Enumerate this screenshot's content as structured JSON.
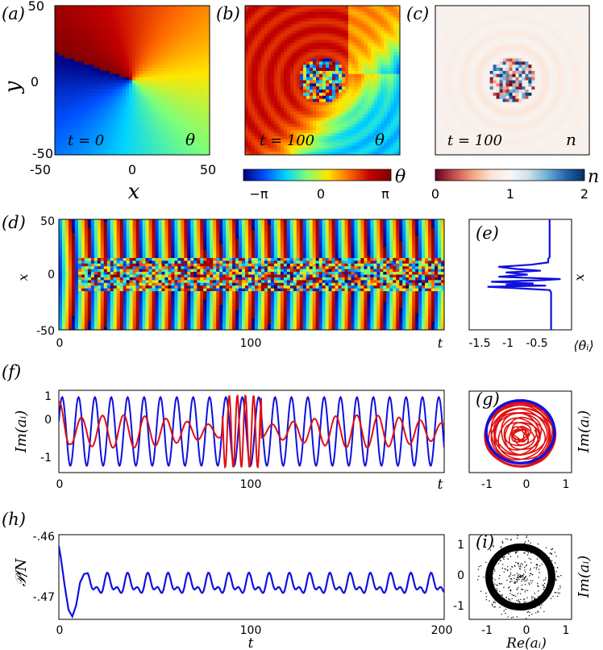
{
  "panel_labels": [
    "(a)",
    "(b)",
    "(c)",
    "(d)",
    "(e)",
    "(f)",
    "(g)",
    "(h)",
    "(i)"
  ],
  "colorbars": {
    "theta": {
      "symbol": "θ",
      "ticks": [
        "−π",
        "0",
        "π"
      ],
      "colormap": [
        "#00007f",
        "#0050ff",
        "#00d4ff",
        "#7cff7a",
        "#ffe600",
        "#ff6a00",
        "#c40000",
        "#7f0000"
      ]
    },
    "n": {
      "symbol": "n",
      "ticks": [
        "0",
        "1",
        "2"
      ],
      "colormap": [
        "#67001f",
        "#c44c4c",
        "#f4a582",
        "#fbe4d6",
        "#f7f7f7",
        "#cfe1ee",
        "#6faed3",
        "#2166ac",
        "#053061"
      ]
    }
  },
  "chart_data": [
    {
      "id": "a",
      "type": "heatmap",
      "title": "",
      "xlabel": "x",
      "ylabel": "y",
      "xlim": [
        -50,
        50
      ],
      "ylim": [
        -50,
        50
      ],
      "xticks": [
        "-50",
        "0",
        "50"
      ],
      "yticks": [
        "50",
        "0",
        "-50"
      ],
      "time_label": "t = 0",
      "field_label": "θ",
      "description_field": "phase θ, vortex centered at origin"
    },
    {
      "id": "b",
      "type": "heatmap",
      "time_label": "t = 100",
      "field_label": "θ",
      "xlim": [
        -50,
        50
      ],
      "ylim": [
        -50,
        50
      ]
    },
    {
      "id": "c",
      "type": "heatmap",
      "time_label": "t = 100",
      "field_label": "n",
      "xlim": [
        -50,
        50
      ],
      "ylim": [
        -50,
        50
      ]
    },
    {
      "id": "d",
      "type": "heatmap",
      "xlabel": "t",
      "ylabel": "x",
      "xlim": [
        0,
        200
      ],
      "ylim": [
        -50,
        50
      ],
      "xticks": [
        "0",
        "100"
      ],
      "yticks": [
        "50",
        "0",
        "-50"
      ]
    },
    {
      "id": "e",
      "type": "line",
      "xlabel": "⟨θ̇ᵢ⟩",
      "ylabel": "x",
      "xlim": [
        -1.6,
        -0.2
      ],
      "ylim": [
        -50,
        50
      ],
      "xticks": [
        "-1.5",
        "-1",
        "-0.5"
      ],
      "series": [
        {
          "name": "avg phase velocity",
          "color": "#1010e0",
          "x": [
            -0.5,
            -0.5,
            -0.5,
            -0.52,
            -0.52,
            -0.75,
            -1.2,
            -0.95,
            -0.62,
            -1.1,
            -0.8,
            -1.2,
            -0.35,
            -0.58,
            -1.3,
            -0.72,
            -1.1,
            -0.55,
            -1.35,
            -0.9,
            -0.5,
            -0.48,
            -0.48,
            -0.48
          ],
          "y": [
            50,
            30,
            16,
            14,
            11,
            9,
            7,
            5,
            3.5,
            2,
            0,
            -2,
            -4,
            -5,
            -6.5,
            -8,
            -9,
            -10,
            -11,
            -12.5,
            -14,
            -16,
            -30,
            -50
          ]
        }
      ]
    },
    {
      "id": "f",
      "type": "line",
      "xlabel": "t",
      "ylabel": "Im(aᵢ)",
      "xlim": [
        0,
        200
      ],
      "ylim": [
        -1.2,
        1.2
      ],
      "xticks": [
        "0",
        "100"
      ],
      "yticks": [
        "1",
        "0",
        "-1"
      ],
      "series": [
        {
          "name": "blue oscillator",
          "color": "#1010e0",
          "amplitude": 1.0,
          "period": 8.5
        },
        {
          "name": "red oscillator",
          "color": "#e01010",
          "amplitude": 0.4,
          "period": 11,
          "burst_t": [
            85,
            105
          ],
          "burst_amplitude": 1.05
        }
      ]
    },
    {
      "id": "g",
      "type": "line",
      "xlabel": "",
      "ylabel": "Im(aᵢ)",
      "xlim": [
        -1.5,
        1.5
      ],
      "ylim": [
        -1.3,
        1.3
      ],
      "xticks": [
        "-1",
        "0",
        "1"
      ],
      "yticks": [
        "1",
        "0",
        "-1"
      ],
      "series": [
        {
          "name": "blue orbit",
          "color": "#1010e0",
          "radius": 1.0
        },
        {
          "name": "red orbit",
          "color": "#e01010",
          "radius_range": [
            0.15,
            1.02
          ]
        }
      ]
    },
    {
      "id": "h",
      "type": "line",
      "xlabel": "t",
      "ylabel": "𝒫/N",
      "xlim": [
        0,
        200
      ],
      "ylim": [
        -0.4745,
        -0.4595
      ],
      "xticks": [
        "0",
        "100",
        "200"
      ],
      "yticks": [
        "-.46",
        "-.47"
      ],
      "series": [
        {
          "name": "P/N",
          "color": "#1010e0",
          "x": [
            0,
            1,
            3,
            5,
            7,
            9,
            11,
            13,
            15
          ],
          "y": [
            -0.4615,
            -0.4635,
            -0.4685,
            -0.4728,
            -0.474,
            -0.472,
            -0.468,
            -0.4665,
            -0.4663
          ],
          "oscillation": {
            "mean": -0.468,
            "amplitude": 0.0022,
            "period": 10.5
          }
        }
      ]
    },
    {
      "id": "i",
      "type": "scatter",
      "xlabel": "Re(aᵢ)",
      "ylabel": "Im(aᵢ)",
      "xlim": [
        -1.5,
        1.5
      ],
      "ylim": [
        -1.3,
        1.3
      ],
      "xticks": [
        "-1",
        "0",
        "1"
      ],
      "yticks": [
        "1",
        "0",
        "-1"
      ],
      "series": [
        {
          "name": "all oscillators",
          "color": "#000000",
          "ring_radius": 0.92
        }
      ]
    }
  ]
}
